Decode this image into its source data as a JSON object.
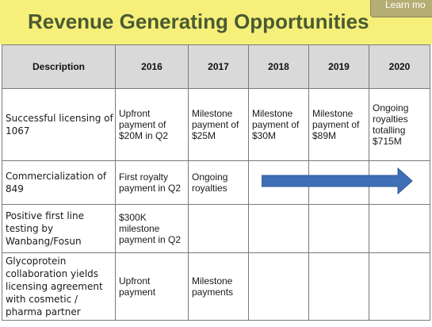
{
  "slide": {
    "title": "Revenue Generating Opportunities",
    "learn_more_label": "Learn mo"
  },
  "table": {
    "headers": [
      "Description",
      "2016",
      "2017",
      "2018",
      "2019",
      "2020"
    ],
    "rows": [
      {
        "description": "Successful licensing of 1067",
        "cells": [
          "Upfront payment of $20M in Q2",
          "Milestone payment of $25M",
          "Milestone payment of $30M",
          "Milestone payment of $89M",
          "Ongoing royalties totalling $715M"
        ]
      },
      {
        "description": "Commercialization of 849",
        "cells": [
          "First royalty payment in Q2",
          "Ongoing royalties",
          "",
          "",
          ""
        ]
      },
      {
        "description": "Positive first line testing by Wanbang/Fosun",
        "cells": [
          "$300K milestone payment in Q2",
          "",
          "",
          "",
          ""
        ]
      },
      {
        "description": "Glycoprotein collaboration yields licensing agreement with cosmetic / pharma partner",
        "cells": [
          "Upfront payment",
          "Milestone payments",
          "",
          "",
          ""
        ]
      }
    ]
  },
  "arrow_color": "#3f6fb6",
  "colors": {
    "title_band": "#f6f07a",
    "title_text": "#4a5a32",
    "header_bg": "#d9d9d9"
  }
}
